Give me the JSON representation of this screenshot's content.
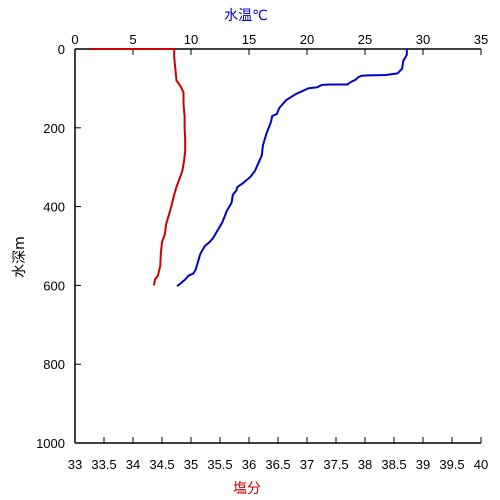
{
  "chart_data": {
    "type": "line",
    "title": "",
    "y_axis": {
      "label": "水深m",
      "range": [
        1000,
        0
      ],
      "ticks": [
        0,
        200,
        400,
        600,
        800,
        1000
      ],
      "tick_labels": [
        "0",
        "200",
        "400",
        "600",
        "800",
        "1000"
      ]
    },
    "x_axis_top": {
      "label": "水温℃",
      "label_color": "#0000cc",
      "range": [
        0,
        35
      ],
      "ticks": [
        0,
        5,
        10,
        15,
        20,
        25,
        30,
        35
      ],
      "tick_labels": [
        "0",
        "5",
        "10",
        "15",
        "20",
        "25",
        "30",
        "35"
      ]
    },
    "x_axis_bottom": {
      "label": "塩分",
      "label_color": "#cc0000",
      "range": [
        33,
        40
      ],
      "ticks": [
        33,
        33.5,
        34,
        34.5,
        35,
        35.5,
        36,
        36.5,
        37,
        37.5,
        38,
        38.5,
        39,
        39.5,
        40
      ],
      "tick_labels": [
        "33",
        "33.5",
        "34",
        "34.5",
        "35",
        "35.5",
        "36",
        "36.5",
        "37",
        "37.5",
        "38",
        "38.5",
        "39",
        "39.5",
        "40"
      ]
    },
    "grid": false,
    "series": [
      {
        "axis": "top",
        "color": "#0000cc",
        "points": [
          [
            28.6,
            0
          ],
          [
            28.6,
            15
          ],
          [
            28.3,
            30
          ],
          [
            28.2,
            50
          ],
          [
            27.8,
            62
          ],
          [
            26.8,
            66
          ],
          [
            25.3,
            67
          ],
          [
            24.7,
            68
          ],
          [
            24.4,
            72
          ],
          [
            24.2,
            78
          ],
          [
            23.9,
            82
          ],
          [
            23.6,
            87
          ],
          [
            23.5,
            90
          ],
          [
            22.0,
            90
          ],
          [
            21.3,
            91
          ],
          [
            20.9,
            97
          ],
          [
            20.1,
            100
          ],
          [
            19.0,
            115
          ],
          [
            18.2,
            130
          ],
          [
            17.6,
            150
          ],
          [
            17.4,
            165
          ],
          [
            17.0,
            170
          ],
          [
            16.9,
            185
          ],
          [
            16.7,
            200
          ],
          [
            16.5,
            215
          ],
          [
            16.2,
            245
          ],
          [
            16.1,
            270
          ],
          [
            15.8,
            290
          ],
          [
            15.5,
            310
          ],
          [
            15.1,
            325
          ],
          [
            14.5,
            340
          ],
          [
            14.0,
            350
          ],
          [
            13.9,
            360
          ],
          [
            13.6,
            370
          ],
          [
            13.5,
            390
          ],
          [
            13.1,
            410
          ],
          [
            12.7,
            440
          ],
          [
            12.3,
            460
          ],
          [
            11.9,
            480
          ],
          [
            11.6,
            490
          ],
          [
            11.2,
            500
          ],
          [
            10.8,
            520
          ],
          [
            10.6,
            540
          ],
          [
            10.4,
            560
          ],
          [
            10.2,
            570
          ],
          [
            9.8,
            575
          ],
          [
            9.5,
            585
          ],
          [
            9.1,
            595
          ],
          [
            8.8,
            602
          ]
        ]
      },
      {
        "axis": "bottom",
        "color": "#cc0000",
        "points": [
          [
            33.25,
            0
          ],
          [
            34.71,
            0
          ],
          [
            34.71,
            20
          ],
          [
            34.73,
            50
          ],
          [
            34.75,
            80
          ],
          [
            34.82,
            95
          ],
          [
            34.87,
            110
          ],
          [
            34.87,
            140
          ],
          [
            34.89,
            170
          ],
          [
            34.89,
            200
          ],
          [
            34.9,
            230
          ],
          [
            34.9,
            260
          ],
          [
            34.88,
            285
          ],
          [
            34.85,
            310
          ],
          [
            34.8,
            330
          ],
          [
            34.75,
            350
          ],
          [
            34.7,
            375
          ],
          [
            34.66,
            400
          ],
          [
            34.62,
            420
          ],
          [
            34.57,
            445
          ],
          [
            34.55,
            470
          ],
          [
            34.5,
            490
          ],
          [
            34.48,
            520
          ],
          [
            34.47,
            550
          ],
          [
            34.43,
            575
          ],
          [
            34.38,
            585
          ],
          [
            34.36,
            600
          ]
        ]
      }
    ]
  }
}
